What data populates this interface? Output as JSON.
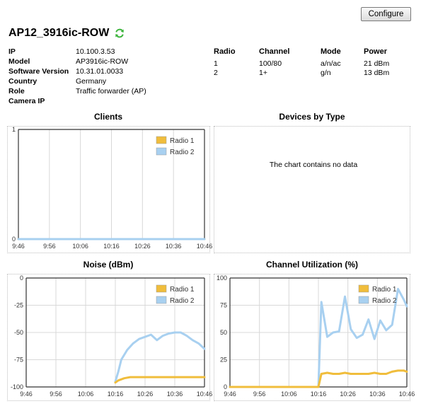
{
  "toolbar": {
    "configure_label": "Configure"
  },
  "header": {
    "title": "AP12_3916ic-ROW",
    "refresh_icon": "refresh-icon",
    "refresh_color": "#3cb43c"
  },
  "info": [
    {
      "label": "IP",
      "value": "10.100.3.53"
    },
    {
      "label": "Model",
      "value": "AP3916ic-ROW"
    },
    {
      "label": "Software Version",
      "value": "10.31.01.0033"
    },
    {
      "label": "Country",
      "value": "Germany"
    },
    {
      "label": "Role",
      "value": "Traffic forwarder (AP)"
    },
    {
      "label": "Camera IP",
      "value": ""
    }
  ],
  "radio_table": {
    "headers": [
      "Radio",
      "Channel",
      "Mode",
      "Power"
    ],
    "rows": [
      [
        "1",
        "100/80",
        "a/n/ac",
        "21 dBm"
      ],
      [
        "2",
        "1+",
        "g/n",
        "13 dBm"
      ]
    ]
  },
  "sections": {
    "clients_title": "Clients",
    "devices_title": "Devices by Type",
    "noise_title": "Noise (dBm)",
    "util_title": "Channel Utilization (%)",
    "no_data": "The chart contains no data"
  },
  "colors": {
    "radio1": "#f0bd3c",
    "radio2": "#a8d0f0"
  },
  "chart_data": [
    {
      "id": "clients",
      "type": "line",
      "title": "Clients",
      "x": [
        "9:46",
        "9:56",
        "10:06",
        "10:16",
        "10:26",
        "10:36",
        "10:46"
      ],
      "ylim": [
        0,
        1
      ],
      "yticks": [
        "0",
        "1"
      ],
      "legend": "top-right",
      "grid": true,
      "series": [
        {
          "name": "Radio 1",
          "values": [
            0,
            0,
            0,
            0,
            0,
            0,
            0
          ]
        },
        {
          "name": "Radio 2",
          "values": [
            0,
            0,
            0,
            0,
            0,
            0,
            0
          ]
        }
      ]
    },
    {
      "id": "noise",
      "type": "line",
      "title": "Noise (dBm)",
      "x": [
        "9:46",
        "9:56",
        "10:06",
        "10:16",
        "10:26",
        "10:36",
        "10:46"
      ],
      "ylim": [
        -100,
        0
      ],
      "yticks": [
        "0",
        "-25",
        "-50",
        "-75",
        "-100"
      ],
      "legend": "top-right",
      "grid": true,
      "series": [
        {
          "name": "Radio 1",
          "points": [
            [
              30,
              -96
            ],
            [
              31,
              -94
            ],
            [
              33,
              -92
            ],
            [
              35,
              -91
            ],
            [
              38,
              -91
            ],
            [
              42,
              -91
            ],
            [
              46,
              -91
            ],
            [
              50,
              -91
            ],
            [
              54,
              -91
            ],
            [
              60,
              -91
            ]
          ]
        },
        {
          "name": "Radio 2",
          "points": [
            [
              30,
              -95
            ],
            [
              31,
              -86
            ],
            [
              32,
              -75
            ],
            [
              34,
              -66
            ],
            [
              36,
              -60
            ],
            [
              38,
              -56
            ],
            [
              40,
              -54
            ],
            [
              42,
              -52
            ],
            [
              44,
              -57
            ],
            [
              46,
              -53
            ],
            [
              48,
              -51
            ],
            [
              50,
              -50
            ],
            [
              52,
              -50
            ],
            [
              54,
              -53
            ],
            [
              56,
              -57
            ],
            [
              58,
              -60
            ],
            [
              60,
              -65
            ]
          ]
        }
      ]
    },
    {
      "id": "utilization",
      "type": "line",
      "title": "Channel Utilization (%)",
      "x": [
        "9:46",
        "9:56",
        "10:06",
        "10:16",
        "10:26",
        "10:36",
        "10:46"
      ],
      "ylim": [
        0,
        100
      ],
      "yticks": [
        "100",
        "75",
        "50",
        "25",
        "0"
      ],
      "legend": "top-right",
      "grid": true,
      "series": [
        {
          "name": "Radio 1",
          "points": [
            [
              0,
              0
            ],
            [
              29,
              0
            ],
            [
              30,
              0
            ],
            [
              31,
              12
            ],
            [
              33,
              13
            ],
            [
              35,
              12
            ],
            [
              37,
              12
            ],
            [
              39,
              13
            ],
            [
              41,
              12
            ],
            [
              43,
              12
            ],
            [
              45,
              12
            ],
            [
              47,
              12
            ],
            [
              49,
              13
            ],
            [
              51,
              12
            ],
            [
              53,
              12
            ],
            [
              55,
              14
            ],
            [
              57,
              15
            ],
            [
              59,
              15
            ],
            [
              60,
              14
            ]
          ]
        },
        {
          "name": "Radio 2",
          "points": [
            [
              0,
              0
            ],
            [
              29,
              0
            ],
            [
              30,
              0
            ],
            [
              31,
              78
            ],
            [
              33,
              46
            ],
            [
              35,
              50
            ],
            [
              37,
              51
            ],
            [
              39,
              83
            ],
            [
              41,
              53
            ],
            [
              43,
              45
            ],
            [
              45,
              48
            ],
            [
              47,
              62
            ],
            [
              49,
              44
            ],
            [
              51,
              61
            ],
            [
              53,
              52
            ],
            [
              55,
              57
            ],
            [
              57,
              90
            ],
            [
              59,
              80
            ],
            [
              60,
              74
            ]
          ]
        }
      ]
    }
  ]
}
